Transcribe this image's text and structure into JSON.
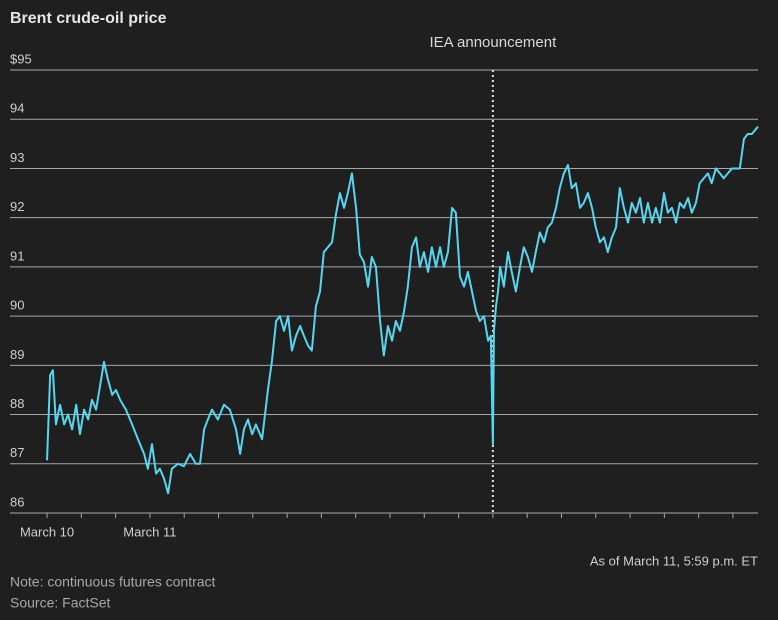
{
  "chart_data": {
    "type": "line",
    "title": "Brent crude-oil price",
    "annotation": {
      "text": "IEA announcement",
      "x": 13
    },
    "timestamp": "As of March 11, 5:59 p.m. ET",
    "note": "Note: continuous futures contract",
    "source": "Source: FactSet",
    "color": "#58d6f0",
    "grid": true,
    "xlim": [
      -1.08,
      20.73
    ],
    "xticks": [
      {
        "value": 0,
        "label": "March 10"
      },
      {
        "value": 3,
        "label": "March 11"
      }
    ],
    "xminorticks": [
      1,
      2,
      4,
      5,
      6,
      7,
      8,
      9,
      10,
      11,
      12,
      13,
      14,
      15,
      16,
      17,
      18,
      19,
      20
    ],
    "ylim": [
      86,
      95
    ],
    "yticks": [
      86,
      87,
      88,
      89,
      90,
      91,
      92,
      93,
      94,
      {
        "value": 95,
        "label": "$95"
      }
    ],
    "x": [
      0,
      0.09,
      0.17,
      0.26,
      0.38,
      0.5,
      0.61,
      0.73,
      0.85,
      0.96,
      1.08,
      1.2,
      1.31,
      1.43,
      1.55,
      1.66,
      1.78,
      1.9,
      2.01,
      2.13,
      2.3,
      2.48,
      2.65,
      2.83,
      2.94,
      3.06,
      3.18,
      3.29,
      3.41,
      3.53,
      3.64,
      3.82,
      3.99,
      4.17,
      4.34,
      4.46,
      4.58,
      4.69,
      4.81,
      4.98,
      5.16,
      5.33,
      5.51,
      5.63,
      5.74,
      5.86,
      5.98,
      6.09,
      6.27,
      6.44,
      6.56,
      6.68,
      6.79,
      6.91,
      7.03,
      7.14,
      7.26,
      7.38,
      7.49,
      7.61,
      7.72,
      7.84,
      7.96,
      8.07,
      8.19,
      8.31,
      8.42,
      8.54,
      8.66,
      8.77,
      8.89,
      9.01,
      9.12,
      9.24,
      9.36,
      9.47,
      9.59,
      9.71,
      9.82,
      9.94,
      10.06,
      10.17,
      10.29,
      10.41,
      10.52,
      10.64,
      10.76,
      10.87,
      10.99,
      11.11,
      11.22,
      11.34,
      11.46,
      11.57,
      11.69,
      11.81,
      11.92,
      12.04,
      12.16,
      12.27,
      12.39,
      12.51,
      12.62,
      12.74,
      12.86,
      12.94,
      12.97,
      13.0,
      13.03,
      13.09,
      13.15,
      13.21,
      13.32,
      13.44,
      13.55,
      13.67,
      13.79,
      13.9,
      14.02,
      14.14,
      14.25,
      14.37,
      14.49,
      14.6,
      14.72,
      14.84,
      14.95,
      15.07,
      15.19,
      15.3,
      15.42,
      15.54,
      15.65,
      15.77,
      15.89,
      16.0,
      16.12,
      16.24,
      16.35,
      16.47,
      16.59,
      16.7,
      16.82,
      16.94,
      17.05,
      17.17,
      17.29,
      17.4,
      17.52,
      17.64,
      17.75,
      17.87,
      17.99,
      18.1,
      18.22,
      18.34,
      18.45,
      18.57,
      18.69,
      18.8,
      18.92,
      19.03,
      19.15,
      19.27,
      19.38,
      19.5,
      19.62,
      19.73,
      19.85,
      19.97,
      20.08,
      20.2,
      20.32,
      20.43,
      20.55,
      20.67,
      20.73
    ],
    "values": [
      87.07,
      88.8,
      88.9,
      87.8,
      88.2,
      87.8,
      88.0,
      87.7,
      88.2,
      87.6,
      88.1,
      87.9,
      88.3,
      88.1,
      88.6,
      89.07,
      88.7,
      88.4,
      88.5,
      88.3,
      88.1,
      87.8,
      87.5,
      87.2,
      86.9,
      87.4,
      86.8,
      86.9,
      86.7,
      86.4,
      86.9,
      87.0,
      86.95,
      87.2,
      87.0,
      87.0,
      87.7,
      87.9,
      88.1,
      87.9,
      88.2,
      88.1,
      87.7,
      87.2,
      87.7,
      87.9,
      87.6,
      87.8,
      87.5,
      88.5,
      89.1,
      89.9,
      90.0,
      89.7,
      90.0,
      89.3,
      89.6,
      89.8,
      89.6,
      89.4,
      89.3,
      90.2,
      90.5,
      91.3,
      91.4,
      91.5,
      92.05,
      92.5,
      92.2,
      92.5,
      92.9,
      92.2,
      91.25,
      91.1,
      90.6,
      91.2,
      91.0,
      89.9,
      89.2,
      89.8,
      89.5,
      89.9,
      89.7,
      90.1,
      90.6,
      91.4,
      91.6,
      91.0,
      91.3,
      90.9,
      91.4,
      91.0,
      91.4,
      91.0,
      91.3,
      92.2,
      92.1,
      90.8,
      90.6,
      90.9,
      90.5,
      90.1,
      89.9,
      90.0,
      89.5,
      89.6,
      88.5,
      87.4,
      89.7,
      90.2,
      90.5,
      91.0,
      90.6,
      91.3,
      90.9,
      90.5,
      91.0,
      91.4,
      91.2,
      90.9,
      91.3,
      91.7,
      91.5,
      91.8,
      91.9,
      92.2,
      92.6,
      92.9,
      93.07,
      92.6,
      92.7,
      92.2,
      92.3,
      92.5,
      92.2,
      91.8,
      91.5,
      91.6,
      91.3,
      91.6,
      91.8,
      92.6,
      92.2,
      91.9,
      92.3,
      92.1,
      92.4,
      91.9,
      92.3,
      91.9,
      92.2,
      91.9,
      92.5,
      92.1,
      92.2,
      91.9,
      92.3,
      92.2,
      92.4,
      92.1,
      92.3,
      92.7,
      92.8,
      92.9,
      92.7,
      93.0,
      92.9,
      92.8,
      92.9,
      93.0,
      93.0,
      93.0,
      93.6,
      93.7,
      93.7,
      93.8,
      93.85
    ]
  }
}
